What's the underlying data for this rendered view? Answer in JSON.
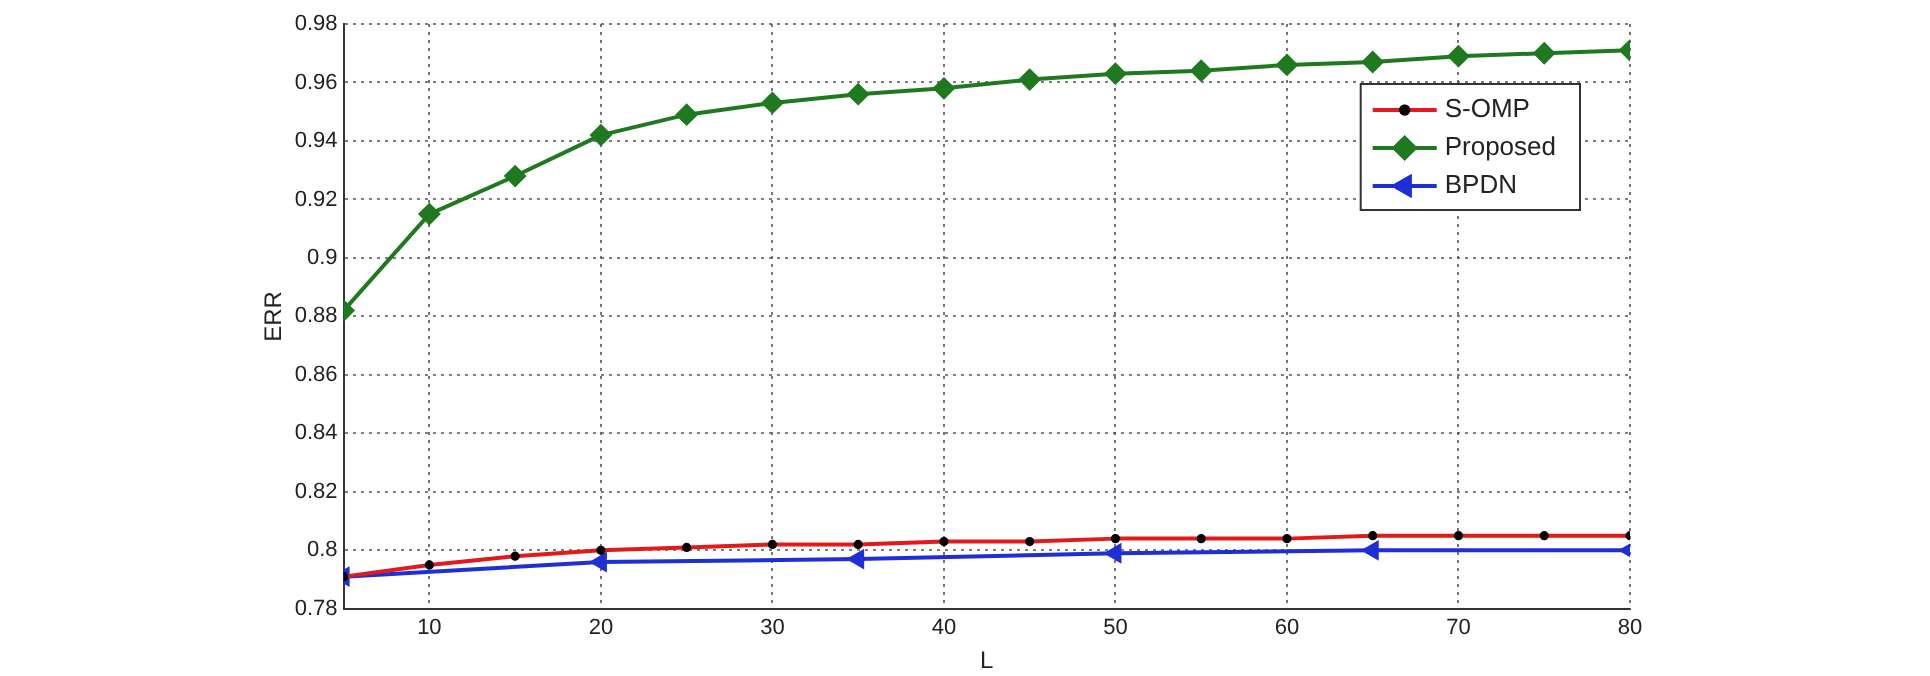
{
  "chart_data": {
    "type": "line",
    "xlabel": "L",
    "ylabel": "ERR",
    "x": [
      5,
      10,
      15,
      20,
      25,
      30,
      35,
      40,
      45,
      50,
      55,
      60,
      65,
      70,
      75,
      80
    ],
    "series": [
      {
        "name": "S-OMP",
        "color": "#e31a1c",
        "marker": "circle",
        "values": [
          0.791,
          0.795,
          0.798,
          0.8,
          0.801,
          0.802,
          0.802,
          0.803,
          0.803,
          0.804,
          0.804,
          0.804,
          0.805,
          0.805,
          0.805,
          0.805
        ]
      },
      {
        "name": "Proposed",
        "color": "#1f7a1f",
        "marker": "diamond",
        "values": [
          0.882,
          0.915,
          0.928,
          0.942,
          0.949,
          0.953,
          0.956,
          0.958,
          0.961,
          0.963,
          0.964,
          0.966,
          0.967,
          0.969,
          0.97,
          0.971
        ]
      },
      {
        "name": "BPDN",
        "color": "#1f2fd6",
        "marker": "triangle",
        "x": [
          5,
          20,
          35,
          50,
          65,
          80
        ],
        "values": [
          0.791,
          0.796,
          0.797,
          0.799,
          0.8,
          0.8
        ]
      }
    ],
    "xlim": [
      5,
      80
    ],
    "xticks": [
      10,
      20,
      30,
      40,
      50,
      60,
      70,
      80
    ],
    "ylim": [
      0.78,
      0.98
    ],
    "yticks": [
      0.78,
      0.8,
      0.82,
      0.84,
      0.86,
      0.88,
      0.9,
      0.92,
      0.94,
      0.96,
      0.98
    ],
    "grid": true,
    "legend": "top right",
    "line_style": "solid"
  }
}
